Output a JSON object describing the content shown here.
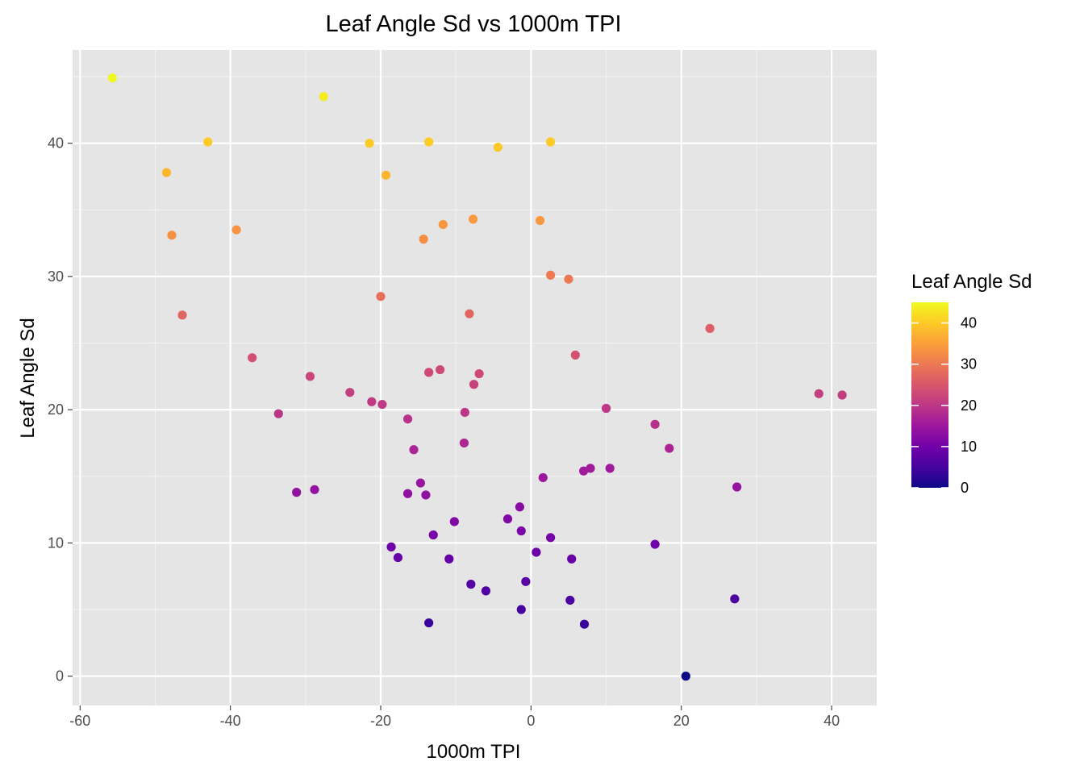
{
  "chart_data": {
    "type": "scatter",
    "title": "Leaf Angle Sd vs 1000m TPI",
    "xlabel": "1000m TPI",
    "ylabel": "Leaf Angle Sd",
    "xlim": [
      -61,
      46
    ],
    "ylim": [
      -2.2,
      47
    ],
    "x_ticks": [
      -60,
      -40,
      -20,
      0,
      20,
      40
    ],
    "x_tick_labels": [
      "-60",
      "-40",
      "-20",
      "0",
      "20",
      "40"
    ],
    "y_ticks": [
      0,
      10,
      20,
      30,
      40
    ],
    "y_tick_labels": [
      "0",
      "10",
      "20",
      "30",
      "40"
    ],
    "grid": true,
    "legend": {
      "title": "Leaf Angle Sd",
      "placement": "right",
      "min": 0,
      "max": 45,
      "ticks": [
        0,
        10,
        20,
        30,
        40
      ],
      "tick_labels": [
        "0",
        "10",
        "20",
        "30",
        "40"
      ],
      "colormap": "plasma",
      "color_stops": [
        "#0d0887",
        "#46039f",
        "#7201a8",
        "#9c179e",
        "#bd3786",
        "#d8576b",
        "#ed7953",
        "#fb9f3a",
        "#fdca26",
        "#f0f921"
      ]
    },
    "points": [
      {
        "x": -55.7,
        "y": 44.9
      },
      {
        "x": -27.6,
        "y": 43.5
      },
      {
        "x": -43.0,
        "y": 40.1
      },
      {
        "x": -21.5,
        "y": 40.0
      },
      {
        "x": -13.6,
        "y": 40.1
      },
      {
        "x": -4.4,
        "y": 39.7
      },
      {
        "x": 2.6,
        "y": 40.1
      },
      {
        "x": -48.5,
        "y": 37.8
      },
      {
        "x": -19.3,
        "y": 37.6
      },
      {
        "x": -47.8,
        "y": 33.1
      },
      {
        "x": -39.2,
        "y": 33.5
      },
      {
        "x": -14.3,
        "y": 32.8
      },
      {
        "x": -11.7,
        "y": 33.9
      },
      {
        "x": -7.7,
        "y": 34.3
      },
      {
        "x": 1.2,
        "y": 34.2
      },
      {
        "x": 2.6,
        "y": 30.1
      },
      {
        "x": 5.0,
        "y": 29.8
      },
      {
        "x": -20.0,
        "y": 28.5
      },
      {
        "x": -8.2,
        "y": 27.2
      },
      {
        "x": -46.4,
        "y": 27.1
      },
      {
        "x": 23.8,
        "y": 26.1
      },
      {
        "x": 5.9,
        "y": 24.1
      },
      {
        "x": -37.1,
        "y": 23.9
      },
      {
        "x": -29.4,
        "y": 22.5
      },
      {
        "x": -13.6,
        "y": 22.8
      },
      {
        "x": -12.1,
        "y": 23.0
      },
      {
        "x": -6.9,
        "y": 22.7
      },
      {
        "x": -7.6,
        "y": 21.9
      },
      {
        "x": -24.1,
        "y": 21.3
      },
      {
        "x": -21.2,
        "y": 20.6
      },
      {
        "x": -19.8,
        "y": 20.4
      },
      {
        "x": -33.6,
        "y": 19.7
      },
      {
        "x": -16.4,
        "y": 19.3
      },
      {
        "x": -8.8,
        "y": 19.8
      },
      {
        "x": 10.0,
        "y": 20.1
      },
      {
        "x": 16.5,
        "y": 18.9
      },
      {
        "x": 38.3,
        "y": 21.2
      },
      {
        "x": 41.4,
        "y": 21.1
      },
      {
        "x": -15.6,
        "y": 17.0
      },
      {
        "x": -8.9,
        "y": 17.5
      },
      {
        "x": 18.4,
        "y": 17.1
      },
      {
        "x": 7.0,
        "y": 15.4
      },
      {
        "x": 7.9,
        "y": 15.6
      },
      {
        "x": 10.5,
        "y": 15.6
      },
      {
        "x": 1.6,
        "y": 14.9
      },
      {
        "x": -14.7,
        "y": 14.5
      },
      {
        "x": -31.2,
        "y": 13.8
      },
      {
        "x": -28.8,
        "y": 14.0
      },
      {
        "x": -16.4,
        "y": 13.7
      },
      {
        "x": -14.0,
        "y": 13.6
      },
      {
        "x": 27.4,
        "y": 14.2
      },
      {
        "x": -3.1,
        "y": 11.8
      },
      {
        "x": -1.5,
        "y": 12.7
      },
      {
        "x": -10.2,
        "y": 11.6
      },
      {
        "x": -1.3,
        "y": 10.9
      },
      {
        "x": -13.0,
        "y": 10.6
      },
      {
        "x": 2.6,
        "y": 10.4
      },
      {
        "x": -18.6,
        "y": 9.7
      },
      {
        "x": -17.7,
        "y": 8.9
      },
      {
        "x": -10.9,
        "y": 8.8
      },
      {
        "x": 0.7,
        "y": 9.3
      },
      {
        "x": 5.4,
        "y": 8.8
      },
      {
        "x": 16.5,
        "y": 9.9
      },
      {
        "x": -8.0,
        "y": 6.9
      },
      {
        "x": -6.0,
        "y": 6.4
      },
      {
        "x": -0.7,
        "y": 7.1
      },
      {
        "x": 5.2,
        "y": 5.7
      },
      {
        "x": 27.1,
        "y": 5.8
      },
      {
        "x": -13.6,
        "y": 4.0
      },
      {
        "x": -1.3,
        "y": 5.0
      },
      {
        "x": 7.1,
        "y": 3.9
      },
      {
        "x": 20.6,
        "y": 0.0
      }
    ]
  }
}
